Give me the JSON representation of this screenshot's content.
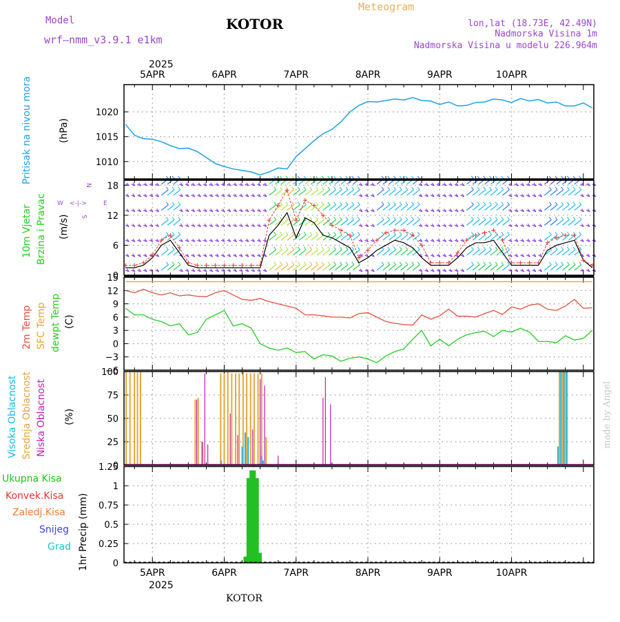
{
  "header": {
    "model_label": "Model",
    "model_name": "wrf–nmm_v3.9.1  e1km",
    "station": "KOTOR",
    "meteogram": "Meteogram",
    "lonlat": "lon,lat (18.73E, 42.49N)",
    "elevation": "Nadmorska Visina 1m",
    "model_elevation": "Nadmorska Visina u modelu 226.964m",
    "footer_station": "KOTOR",
    "credit": "made by Angel"
  },
  "time_axis": {
    "year": "2025",
    "days": [
      "5APR",
      "6APR",
      "7APR",
      "8APR",
      "9APR",
      "10APR"
    ]
  },
  "colors": {
    "pressure": "#1aa0e6",
    "wind_speed": "#000000",
    "wind_gust": "#e8382e",
    "t2m": "#e84c3d",
    "sfc_temp": "#e6a43a",
    "dewpoint": "#22cc22",
    "cloud_high": "#1ab7e6",
    "cloud_mid": "#e6a43a",
    "cloud_low": "#c41ab2",
    "precip_total": "#22c022",
    "precip_conv": "#e83030",
    "precip_freezing": "#f07a30",
    "snow": "#4040e0",
    "hail": "#20c0c0",
    "purple_label": "#9a46c8"
  },
  "panels": {
    "pressure": {
      "label_line1": "Pritisak na nivou mora",
      "unit": "(hPa)",
      "ticks": [
        "1010",
        "1015",
        "1020"
      ]
    },
    "wind": {
      "label_line1": "10m Vjetar",
      "label_line2": "Brzina i Pravac",
      "unit": "(m/s)",
      "ticks": [
        "0",
        "6",
        "12",
        "18"
      ],
      "compass": {
        "n": "N",
        "s": "S",
        "w": "W",
        "e": "E",
        "arrows": "<-|->"
      }
    },
    "temp": {
      "label_line1": "2m Temp",
      "label_line2": "SFC Temp",
      "label_line3": "dewpt Temp",
      "unit": "(C)",
      "ticks": [
        "−6",
        "−3",
        "0",
        "3",
        "6",
        "9",
        "12",
        "15"
      ]
    },
    "cloud": {
      "label_line1": "Visoka Oblacnost",
      "label_line2": "Srednja Oblacnost",
      "label_line3": "Niska Oblacnost",
      "unit": "(%)",
      "ticks": [
        "0",
        "25",
        "50",
        "75",
        "100"
      ]
    },
    "precip": {
      "legend": [
        "Ukupna Kisa",
        "Konvek.Kisa",
        "Zaledj.Kisa",
        "Snijeg",
        "Grad"
      ],
      "unit": "1hr Precip (mm)",
      "ticks": [
        "0",
        "0.25",
        "0.5",
        "0.75",
        "1",
        "1.25"
      ]
    }
  },
  "chart_data": [
    {
      "type": "line",
      "title": "Pritisak na nivou mora",
      "ylabel": "(hPa)",
      "x_unit": "hours from 00 UTC 5 Apr 2025",
      "ylim": [
        1006.5,
        1025.5
      ],
      "x": [
        -9,
        -6,
        -3,
        0,
        3,
        6,
        9,
        12,
        15,
        18,
        21,
        24,
        27,
        30,
        33,
        36,
        39,
        42,
        45,
        48,
        51,
        54,
        57,
        60,
        63,
        66,
        69,
        72,
        75,
        78,
        81,
        84,
        87,
        90,
        93,
        96,
        99,
        102,
        105,
        108,
        111,
        114,
        117,
        120,
        123,
        126,
        129,
        132,
        135,
        138,
        141,
        144,
        147
      ],
      "series": [
        {
          "values": [
            1017.5,
            1015.3,
            1014.6,
            1014.5,
            1014.0,
            1013.2,
            1012.6,
            1012.7,
            1012.0,
            1010.8,
            1009.6,
            1009.0,
            1008.5,
            1008.2,
            1007.9,
            1007.3,
            1007.9,
            1008.7,
            1008.5,
            1011.0,
            1012.6,
            1014.2,
            1015.6,
            1016.5,
            1018.0,
            1020.0,
            1021.3,
            1022.1,
            1022.0,
            1022.3,
            1022.6,
            1022.4,
            1022.9,
            1022.3,
            1022.2,
            1021.5,
            1022.0,
            1021.2,
            1021.3,
            1021.9,
            1022.0,
            1022.6,
            1022.4,
            1021.9,
            1022.7,
            1022.2,
            1022.5,
            1021.8,
            1022.0,
            1021.2,
            1021.2,
            1021.8,
            1020.8
          ]
        }
      ]
    },
    {
      "type": "line",
      "title": "10m Vjetar Brzina i Pravac",
      "ylabel": "(m/s)",
      "ylim": [
        0,
        19
      ],
      "x": [
        -9,
        -6,
        -3,
        0,
        3,
        6,
        9,
        12,
        15,
        18,
        21,
        24,
        27,
        30,
        33,
        36,
        39,
        42,
        45,
        48,
        51,
        54,
        57,
        60,
        63,
        66,
        69,
        72,
        75,
        78,
        81,
        84,
        87,
        90,
        93,
        96,
        99,
        102,
        105,
        108,
        111,
        114,
        117,
        120,
        123,
        126,
        129,
        132,
        135,
        138,
        141,
        144,
        147
      ],
      "series": [
        {
          "values": [
            1.5,
            1.5,
            2,
            3.5,
            6,
            7,
            4.5,
            2,
            1.5,
            1.5,
            1.5,
            1.5,
            1.5,
            1.5,
            1.5,
            1.5,
            8,
            10,
            12.5,
            7.5,
            11.5,
            10.5,
            8,
            7.5,
            6.5,
            5.5,
            2.5,
            3.5,
            5,
            6,
            7,
            6.5,
            5.5,
            3.5,
            2,
            2,
            2,
            3.5,
            5.5,
            6.5,
            6.5,
            7,
            4.5,
            2,
            2,
            2,
            2,
            5,
            6,
            6.5,
            7,
            3,
            1.5
          ]
        },
        {
          "values": [
            2,
            2,
            2.5,
            4,
            7,
            8,
            5.5,
            2.5,
            2,
            2,
            2,
            2,
            2,
            2,
            2,
            2,
            11,
            14,
            17,
            11,
            15,
            14,
            12,
            10,
            9,
            8,
            3.5,
            5,
            7,
            8.5,
            9,
            9,
            8,
            6,
            2.5,
            2.5,
            2.5,
            4.5,
            7,
            8,
            8.5,
            9,
            7,
            2.5,
            2.5,
            2.5,
            2.5,
            6.5,
            7.5,
            8,
            8,
            3,
            2
          ]
        }
      ]
    },
    {
      "type": "line",
      "title": "2m Temp / SFC Temp / dewpt Temp",
      "ylabel": "(C)",
      "ylim": [
        -6,
        15
      ],
      "x": [
        -9,
        -6,
        -3,
        0,
        3,
        6,
        9,
        12,
        15,
        18,
        21,
        24,
        27,
        30,
        33,
        36,
        39,
        42,
        45,
        48,
        51,
        54,
        57,
        60,
        63,
        66,
        69,
        72,
        75,
        78,
        81,
        84,
        87,
        90,
        93,
        96,
        99,
        102,
        105,
        108,
        111,
        114,
        117,
        120,
        123,
        126,
        129,
        132,
        135,
        138,
        141,
        144,
        147
      ],
      "series": [
        {
          "values": [
            12.0,
            11.5,
            12.3,
            11.5,
            11.0,
            11.5,
            10.8,
            11.0,
            10.7,
            10.6,
            11.5,
            12.0,
            11.0,
            10.0,
            9.8,
            10.2,
            9.5,
            9.0,
            8.5,
            8.0,
            6.5,
            6.5,
            6.3,
            6.0,
            6.0,
            5.8,
            6.8,
            7.0,
            6.0,
            5.0,
            4.6,
            4.3,
            4.2,
            6.5,
            5.5,
            6.3,
            7.8,
            6.2,
            6.2,
            6.0,
            6.8,
            7.5,
            6.6,
            8.3,
            7.8,
            8.7,
            9.0,
            7.8,
            7.5,
            8.5,
            10.0,
            8.0,
            8.1
          ]
        },
        {
          "values": [
            14.0,
            14.0,
            14.0,
            14.0,
            14.0,
            14.0,
            14.0,
            14.0,
            14.0,
            14.0,
            14.0,
            14.0,
            14.0,
            14.0,
            14.0,
            14.0,
            14.0,
            14.0,
            14.0,
            14.0,
            14.0,
            14.0,
            14.0,
            14.0,
            14.0,
            14.0,
            14.0,
            14.0,
            14.0,
            14.0,
            14.0,
            14.0,
            14.0,
            14.0,
            14.0,
            14.0,
            14.0,
            14.0,
            14.0,
            14.0,
            14.0,
            14.0,
            14.0,
            14.0,
            14.0,
            14.0,
            14.0,
            14.0,
            14.0,
            14.0,
            14.0,
            14.0,
            14.0
          ]
        },
        {
          "values": [
            8.0,
            6.5,
            6.5,
            5.5,
            5.0,
            4.0,
            4.5,
            2.0,
            2.5,
            5.5,
            6.5,
            7.5,
            4.0,
            4.5,
            3.5,
            0.0,
            -1.0,
            -1.5,
            -1.0,
            -2.0,
            -1.8,
            -3.5,
            -2.5,
            -2.8,
            -4.0,
            -3.3,
            -3.0,
            -3.5,
            -4.3,
            -2.8,
            -1.8,
            -1.2,
            1.0,
            3.0,
            -0.5,
            1.0,
            -0.5,
            1.0,
            2.0,
            2.5,
            2.8,
            1.6,
            3.0,
            2.6,
            3.5,
            2.6,
            0.5,
            0.5,
            0.2,
            1.8,
            0.8,
            1.2,
            3.0
          ]
        }
      ]
    },
    {
      "type": "bar",
      "title": "Visoka / Srednja / Niska Oblacnost",
      "ylabel": "(%)",
      "ylim": [
        0,
        100
      ],
      "bars_hours": {
        "high": [
          [
            23,
            5
          ],
          [
            30,
            20
          ],
          [
            31,
            35
          ],
          [
            32,
            30
          ],
          [
            36,
            3
          ],
          [
            36.5,
            10
          ],
          [
            37,
            5
          ],
          [
            135.5,
            20
          ],
          [
            136.5,
            100
          ],
          [
            137.5,
            100
          ],
          [
            138.5,
            100
          ]
        ],
        "mid": [
          [
            -8.8,
            100
          ],
          [
            -7.5,
            100
          ],
          [
            -6,
            100
          ],
          [
            -5,
            100
          ],
          [
            -4,
            100
          ],
          [
            14.3,
            70
          ],
          [
            15.3,
            72
          ],
          [
            16.5,
            25
          ],
          [
            22.8,
            98
          ],
          [
            24,
            98
          ],
          [
            25.2,
            100
          ],
          [
            26.5,
            98
          ],
          [
            27.8,
            98
          ],
          [
            29,
            98
          ],
          [
            30.3,
            100
          ],
          [
            31.5,
            98
          ],
          [
            32.8,
            98
          ],
          [
            34,
            98
          ],
          [
            35.3,
            98
          ],
          [
            36.5,
            98
          ],
          [
            38,
            30
          ],
          [
            136,
            100
          ],
          [
            137,
            100
          ],
          [
            138,
            100
          ]
        ],
        "low": [
          [
            14.8,
            70
          ],
          [
            16.8,
            25
          ],
          [
            17.5,
            98
          ],
          [
            18.5,
            22
          ],
          [
            26,
            55
          ],
          [
            28.5,
            32
          ],
          [
            33.5,
            38
          ],
          [
            36,
            92
          ],
          [
            37.5,
            85
          ],
          [
            42,
            10
          ],
          [
            57,
            72
          ],
          [
            57.8,
            94
          ],
          [
            59.5,
            65
          ]
        ]
      }
    },
    {
      "type": "bar",
      "title": "1hr Precip",
      "ylabel": "1hr Precip (mm)",
      "ylim": [
        0,
        1.25
      ],
      "bars_hours": {
        "total": [
          [
            24,
            0.01
          ],
          [
            31,
            0.08
          ],
          [
            32,
            1.1
          ],
          [
            33,
            1.2
          ],
          [
            34,
            1.2
          ],
          [
            35,
            1.1
          ],
          [
            36,
            0.13
          ],
          [
            57,
            0.01
          ]
        ]
      }
    }
  ]
}
